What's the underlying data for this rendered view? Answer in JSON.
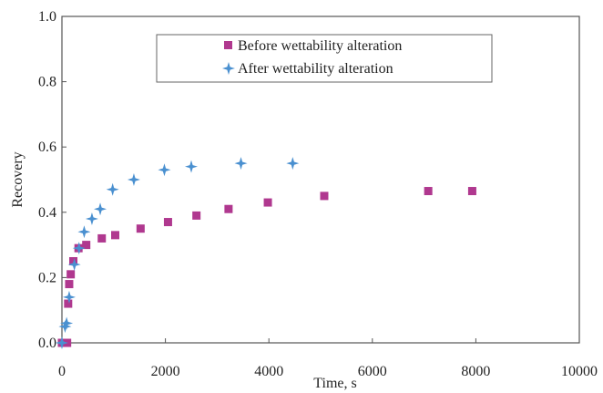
{
  "chart_data": {
    "type": "scatter",
    "title": "",
    "xlabel": "Time,  s",
    "ylabel": "Recovery",
    "xlim": [
      0,
      10000
    ],
    "ylim": [
      0,
      1.0
    ],
    "x_ticks": [
      "0",
      "2000",
      "4000",
      "6000",
      "8000",
      "10000"
    ],
    "y_ticks": [
      "0.0",
      "0.2",
      "0.4",
      "0.6",
      "0.8",
      "1.0"
    ],
    "grid": false,
    "legend_position": "top-center",
    "series": [
      {
        "name": "Before wettability alteration",
        "color": "#b0388f",
        "marker": "square",
        "points": [
          [
            0,
            0.0
          ],
          [
            50,
            0.0
          ],
          [
            100,
            0.0
          ],
          [
            120,
            0.12
          ],
          [
            140,
            0.18
          ],
          [
            170,
            0.21
          ],
          [
            220,
            0.25
          ],
          [
            320,
            0.29
          ],
          [
            470,
            0.3
          ],
          [
            770,
            0.32
          ],
          [
            1030,
            0.33
          ],
          [
            1520,
            0.35
          ],
          [
            2050,
            0.37
          ],
          [
            2600,
            0.39
          ],
          [
            3220,
            0.41
          ],
          [
            3980,
            0.43
          ],
          [
            5070,
            0.45
          ],
          [
            7080,
            0.465
          ],
          [
            7930,
            0.465
          ]
        ]
      },
      {
        "name": "After wettability alteration",
        "color": "#4a90d0",
        "marker": "diamond",
        "points": [
          [
            0,
            0.0
          ],
          [
            60,
            0.05
          ],
          [
            90,
            0.06
          ],
          [
            140,
            0.14
          ],
          [
            240,
            0.24
          ],
          [
            330,
            0.29
          ],
          [
            430,
            0.34
          ],
          [
            580,
            0.38
          ],
          [
            740,
            0.41
          ],
          [
            980,
            0.47
          ],
          [
            1390,
            0.5
          ],
          [
            1980,
            0.53
          ],
          [
            2500,
            0.54
          ],
          [
            3460,
            0.55
          ],
          [
            4460,
            0.55
          ]
        ]
      }
    ]
  }
}
